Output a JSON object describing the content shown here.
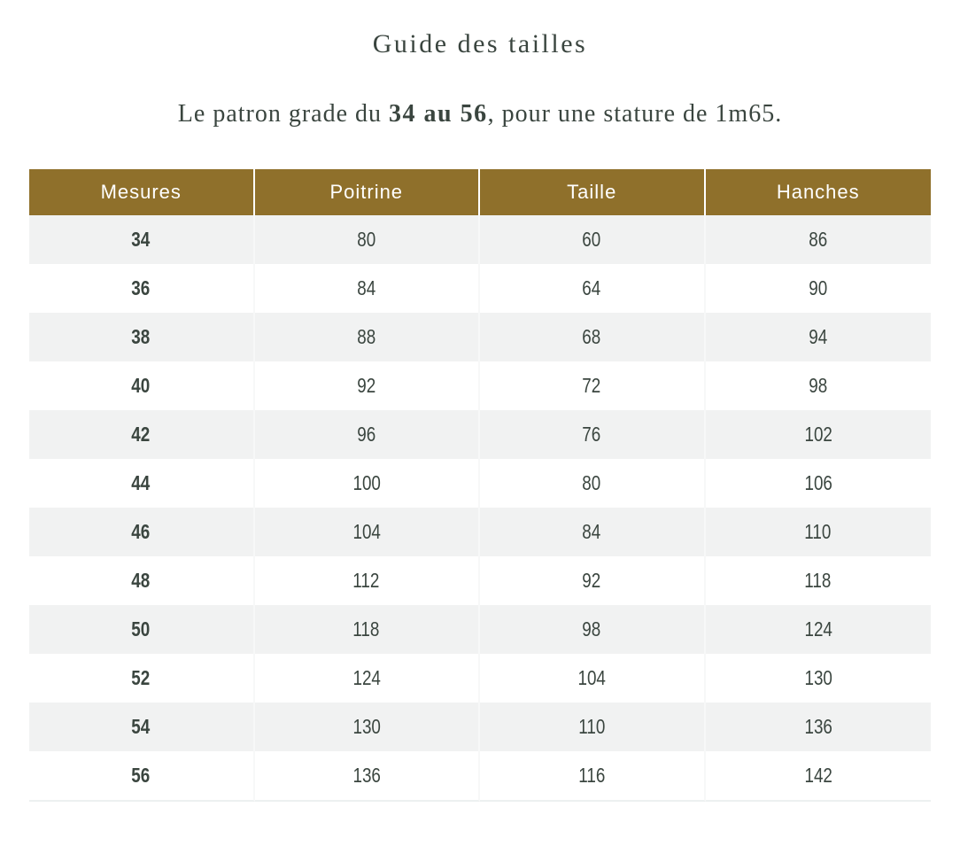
{
  "page": {
    "title": "Guide des tailles",
    "subtitle": {
      "prefix": "Le patron grade du ",
      "highlight": "34 au 56",
      "suffix": ", pour une stature de 1m65."
    }
  },
  "table": {
    "columns": [
      "Mesures",
      "Poitrine",
      "Taille",
      "Hanches"
    ],
    "rows": [
      [
        "34",
        "80",
        "60",
        "86"
      ],
      [
        "36",
        "84",
        "64",
        "90"
      ],
      [
        "38",
        "88",
        "68",
        "94"
      ],
      [
        "40",
        "92",
        "72",
        "98"
      ],
      [
        "42",
        "96",
        "76",
        "102"
      ],
      [
        "44",
        "100",
        "80",
        "106"
      ],
      [
        "46",
        "104",
        "84",
        "110"
      ],
      [
        "48",
        "112",
        "92",
        "118"
      ],
      [
        "50",
        "118",
        "98",
        "124"
      ],
      [
        "52",
        "124",
        "104",
        "130"
      ],
      [
        "54",
        "130",
        "110",
        "136"
      ],
      [
        "56",
        "136",
        "116",
        "142"
      ]
    ]
  },
  "colors": {
    "header_background": "#8f702b",
    "header_text": "#ffffff",
    "stripe_background": "#f1f2f2",
    "body_text": "#3a453f"
  }
}
